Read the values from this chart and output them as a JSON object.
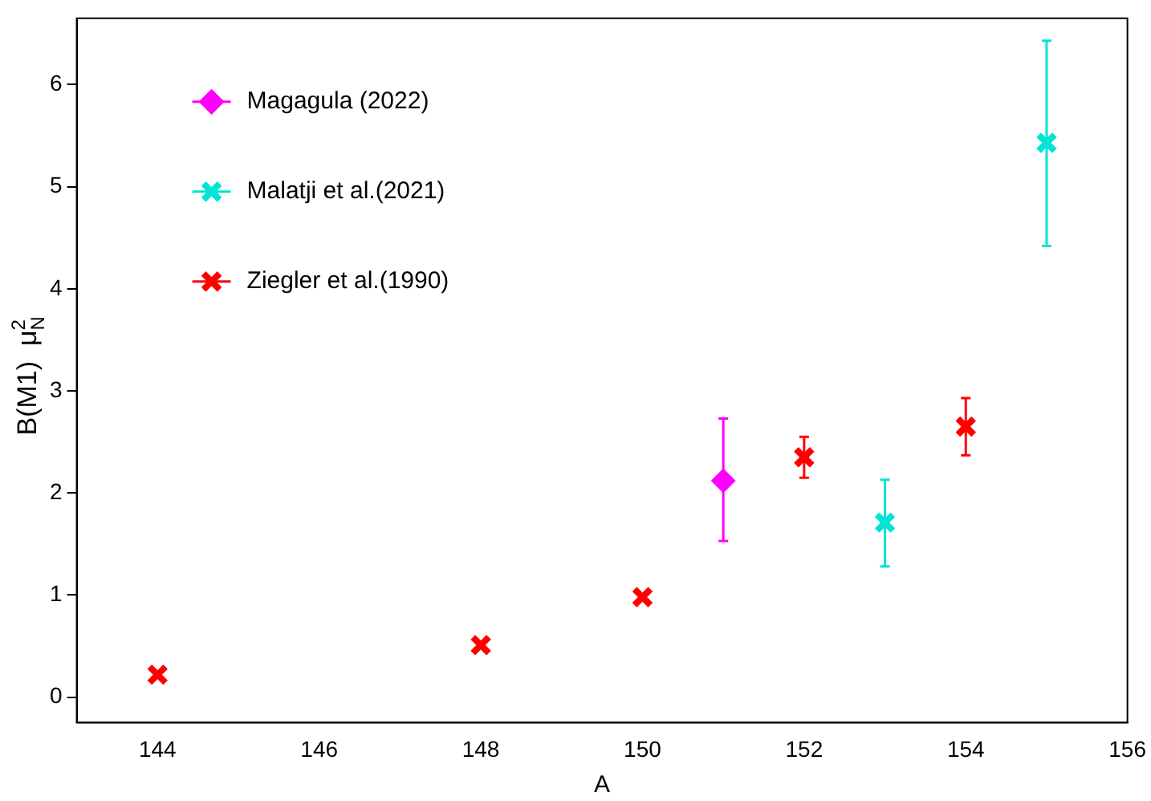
{
  "chart_data": {
    "type": "scatter",
    "xlabel": "A",
    "ylabel": "B(M1)  μ$_{N}$$^{2}$",
    "xlim": [
      143,
      156
    ],
    "xticks": [
      144,
      146,
      148,
      150,
      152,
      154,
      156
    ],
    "ylim": [
      -0.25,
      6.65
    ],
    "yticks": [
      0,
      1,
      2,
      3,
      4,
      5,
      6
    ],
    "grid": false,
    "legend": "top left",
    "series": [
      {
        "name": "Magagula (2022)",
        "color": "#ff00ff",
        "marker": "diamond",
        "x": [
          151
        ],
        "values": [
          2.12
        ],
        "errors": [
          [
            1.53,
            2.73
          ]
        ]
      },
      {
        "name": "Malatji et al.(2021)",
        "color": "#00e5d4",
        "marker": "cross",
        "x": [
          153,
          155
        ],
        "values": [
          1.71,
          5.43
        ],
        "errors": [
          [
            1.28,
            2.13
          ],
          [
            4.42,
            6.43
          ]
        ]
      },
      {
        "name": "Ziegler et al.(1990)",
        "color": "#ff0000",
        "marker": "cross",
        "x": [
          144,
          148,
          150,
          152,
          154
        ],
        "values": [
          0.22,
          0.51,
          0.98,
          2.35,
          2.65
        ],
        "errors": [
          null,
          null,
          null,
          [
            2.15,
            2.55
          ],
          [
            2.37,
            2.93
          ]
        ]
      }
    ]
  }
}
